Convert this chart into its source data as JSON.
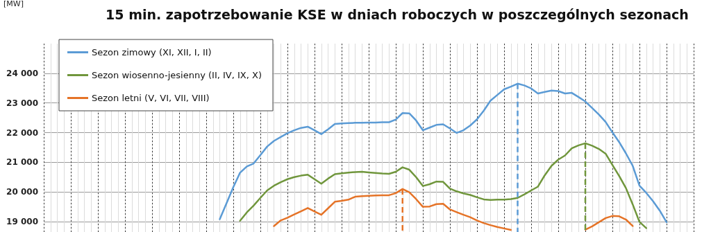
{
  "chart_data": {
    "type": "line",
    "title": "15 min. zapotrzebowanie KSE w dniach roboczych w poszczególnych sezonach",
    "ylabel": "[MW]",
    "categories": [
      null,
      null,
      null,
      null,
      null,
      null,
      null,
      null,
      null,
      null,
      null,
      null,
      null,
      null,
      null,
      null,
      null,
      null,
      null,
      null,
      null,
      null,
      null,
      null,
      null,
      null,
      null,
      null,
      null,
      null,
      null,
      null,
      null,
      null,
      null,
      null,
      null,
      null,
      null,
      null,
      null,
      null,
      null,
      null,
      null,
      null,
      null,
      null,
      null,
      null,
      null,
      null,
      null,
      null,
      null,
      null,
      null,
      null,
      null,
      null,
      null,
      null,
      null,
      null,
      null,
      null,
      null,
      null,
      null,
      null,
      null,
      null,
      null,
      null,
      null,
      null,
      null,
      null,
      null,
      null,
      null,
      null,
      null,
      null,
      null,
      null,
      null,
      null,
      null,
      null,
      null,
      null,
      null,
      null,
      null,
      null,
      null
    ],
    "ylim": [
      18650,
      25000
    ],
    "yticks": [
      {
        "value": 19000,
        "label": "19 000"
      },
      {
        "value": 20000,
        "label": "20 000"
      },
      {
        "value": 21000,
        "label": "21 000"
      },
      {
        "value": 22000,
        "label": "22 000"
      },
      {
        "value": 23000,
        "label": "23 000"
      },
      {
        "value": 24000,
        "label": "24 000"
      }
    ],
    "tick_labels": "y",
    "grid": true,
    "legend": "top left",
    "marker": "none",
    "line_style": "solid",
    "series": [
      {
        "name": "Sezon zimowy (XI, XII, I, II)",
        "color": "#5b9bd5",
        "values": [
          null,
          null,
          null,
          null,
          null,
          null,
          null,
          null,
          null,
          null,
          null,
          null,
          null,
          null,
          null,
          null,
          null,
          null,
          null,
          null,
          null,
          null,
          null,
          null,
          null,
          null,
          19080,
          19620,
          20160,
          20650,
          20860,
          20960,
          21240,
          21530,
          21720,
          21850,
          21980,
          22080,
          22160,
          22200,
          22080,
          21950,
          22110,
          22290,
          22310,
          22320,
          22330,
          22330,
          22340,
          22340,
          22350,
          22350,
          22440,
          22660,
          22650,
          22410,
          22080,
          22170,
          22260,
          22280,
          22140,
          21990,
          22080,
          22240,
          22450,
          22740,
          23080,
          23270,
          23460,
          23550,
          23650,
          23590,
          23490,
          23320,
          23370,
          23420,
          23400,
          23320,
          23340,
          23200,
          23050,
          22830,
          22610,
          22360,
          22010,
          21680,
          21300,
          20880,
          20210,
          19970,
          19690,
          19370,
          18980,
          null,
          null,
          null,
          null
        ]
      },
      {
        "name": "Sezon wiosenno-jesienny (II, IV, IX, X)",
        "color": "#70963c",
        "values": [
          null,
          null,
          null,
          null,
          null,
          null,
          null,
          null,
          null,
          null,
          null,
          null,
          null,
          null,
          null,
          null,
          null,
          null,
          null,
          null,
          null,
          null,
          null,
          null,
          null,
          null,
          null,
          null,
          null,
          19030,
          19310,
          19540,
          19800,
          20050,
          20210,
          20330,
          20430,
          20500,
          20550,
          20580,
          20430,
          20280,
          20450,
          20600,
          20630,
          20650,
          20670,
          20680,
          20660,
          20640,
          20620,
          20610,
          20680,
          20830,
          20750,
          20500,
          20200,
          20260,
          20350,
          20340,
          20110,
          20020,
          19950,
          19900,
          19820,
          19750,
          19730,
          19740,
          19740,
          19760,
          19800,
          19920,
          20050,
          20180,
          20560,
          20880,
          21090,
          21230,
          21470,
          21570,
          21640,
          21560,
          21450,
          21290,
          20910,
          20540,
          20130,
          19580,
          18990,
          18780,
          null,
          null,
          null,
          null,
          null,
          null,
          null
        ]
      },
      {
        "name": "Sezon letni (V, VI, VII, VIII)",
        "color": "#e57327",
        "values": [
          null,
          null,
          null,
          null,
          null,
          null,
          null,
          null,
          null,
          null,
          null,
          null,
          null,
          null,
          null,
          null,
          null,
          null,
          null,
          null,
          null,
          null,
          null,
          null,
          null,
          null,
          null,
          null,
          null,
          null,
          null,
          null,
          null,
          null,
          18850,
          19040,
          19130,
          19240,
          19350,
          19460,
          19340,
          19230,
          19450,
          19670,
          19700,
          19740,
          19840,
          19860,
          19870,
          19880,
          19890,
          19890,
          19960,
          20100,
          19990,
          19760,
          19500,
          19510,
          19590,
          19600,
          19410,
          19320,
          19230,
          19150,
          19040,
          18950,
          18880,
          18820,
          18770,
          18720,
          null,
          null,
          null,
          null,
          null,
          null,
          null,
          null,
          null,
          null,
          18730,
          18840,
          18980,
          19120,
          19190,
          19180,
          19070,
          18850,
          null,
          null,
          null,
          null,
          null,
          null,
          null,
          null,
          null
        ]
      }
    ]
  }
}
